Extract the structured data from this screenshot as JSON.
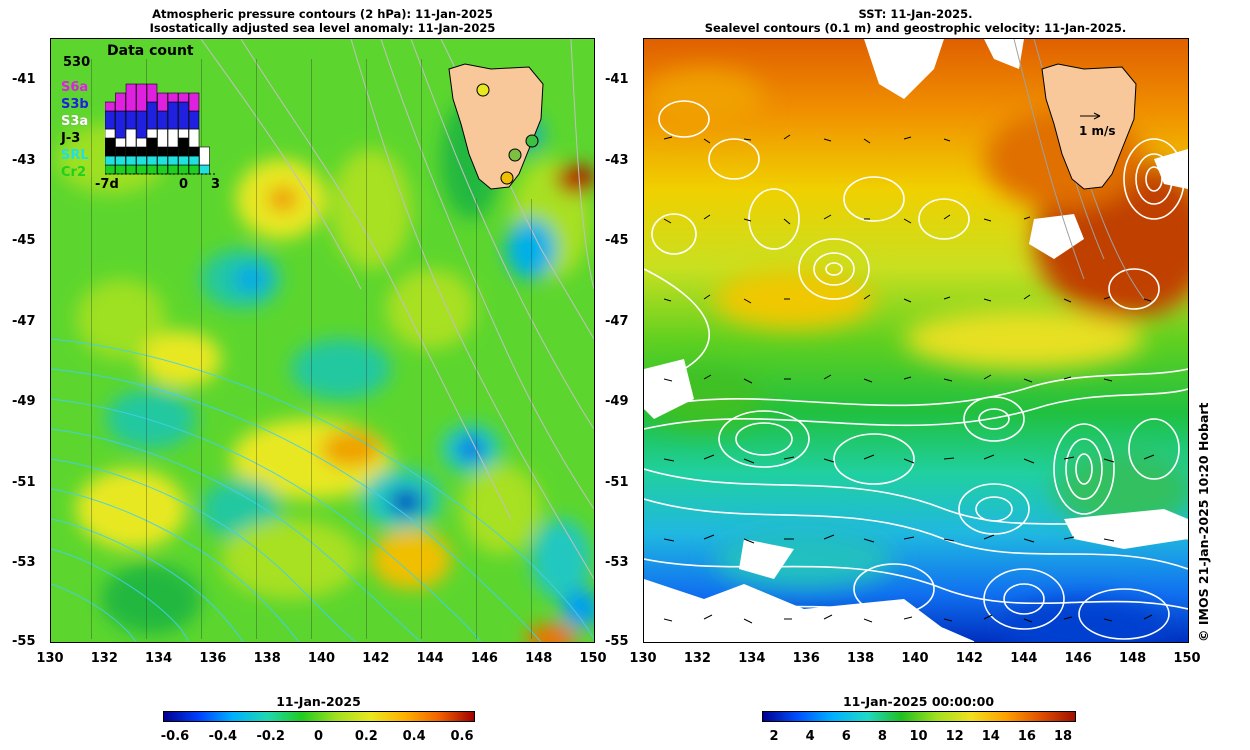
{
  "left_panel": {
    "title_line1": "Atmospheric pressure contours (2 hPa): 11-Jan-2025",
    "title_line2": "Isostatically adjusted sea level anomaly: 11-Jan-2025",
    "inset": {
      "title": "Data count",
      "max_count": "530",
      "satellites": [
        {
          "label": "S6a",
          "color": "#e020e0"
        },
        {
          "label": "S3b",
          "color": "#2020e0"
        },
        {
          "label": "S3a",
          "color": "#ffffff"
        },
        {
          "label": "J-3",
          "color": "#000000"
        },
        {
          "label": "SRL",
          "color": "#20e0e0"
        },
        {
          "label": "Cr2",
          "color": "#20d020"
        }
      ],
      "x_tick_left": "-7d",
      "x_tick_mid": "0",
      "x_tick_right": "3"
    },
    "colorbar": {
      "title": "11-Jan-2025",
      "ticks": [
        "-0.6",
        "-0.4",
        "-0.2",
        "0",
        "0.2",
        "0.4",
        "0.6"
      ]
    }
  },
  "right_panel": {
    "title_line1": "SST: 11-Jan-2025.",
    "title_line2": "Sealevel contours (0.1 m) and geostrophic velocity: 11-Jan-2025.",
    "velocity_legend": "1 m/s",
    "colorbar": {
      "title": "11-Jan-2025 00:00:00",
      "ticks": [
        "2",
        "4",
        "6",
        "8",
        "10",
        "12",
        "14",
        "16",
        "18"
      ]
    }
  },
  "axes": {
    "lat_ticks": [
      "-41",
      "-43",
      "-45",
      "-47",
      "-49",
      "-51",
      "-53",
      "-55"
    ],
    "lon_ticks": [
      "130",
      "132",
      "134",
      "136",
      "138",
      "140",
      "142",
      "144",
      "146",
      "148",
      "150"
    ]
  },
  "copyright": "© IMOS 21-Jan-2025 10:20 Hobart",
  "colors": {
    "land": "#f8c89a",
    "sla_scale": [
      "#00008f",
      "#0040ff",
      "#00b0ff",
      "#20d8b0",
      "#20cc20",
      "#a0e020",
      "#e8e820",
      "#ffb000",
      "#f06000",
      "#a00000"
    ],
    "sst_scale": [
      "#000090",
      "#0050ff",
      "#00b0ff",
      "#20d8c8",
      "#20c020",
      "#a0e020",
      "#f0e020",
      "#ffa000",
      "#e05000",
      "#a01000"
    ]
  }
}
